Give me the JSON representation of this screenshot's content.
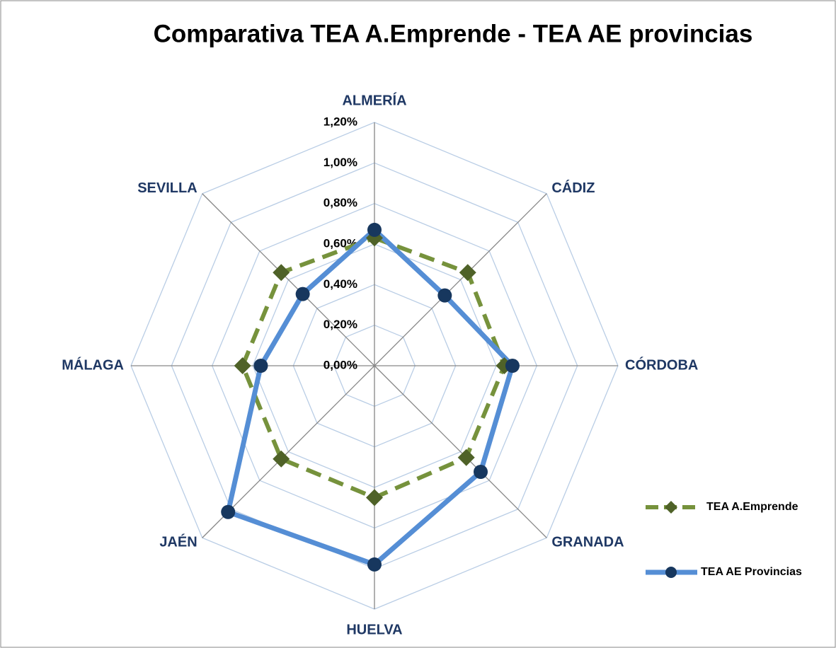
{
  "chart_data": {
    "type": "radar",
    "title": "Comparativa TEA A.Emprende - TEA AE provincias",
    "categories": [
      "ALMERÍA",
      "CÁDIZ",
      "CÓRDOBA",
      "GRANADA",
      "HUELVA",
      "JAÉN",
      "MÁLAGA",
      "SEVILLA"
    ],
    "series": [
      {
        "name": "TEA A.Emprende",
        "color": "#76923c",
        "marker_color": "#4f6228",
        "marker": "diamond",
        "dash": true,
        "values": [
          0.63,
          0.65,
          0.64,
          0.64,
          0.65,
          0.65,
          0.65,
          0.65
        ]
      },
      {
        "name": "TEA AE Provincias",
        "color": "#558ed5",
        "marker_color": "#17375e",
        "marker": "circle",
        "dash": false,
        "values": [
          0.67,
          0.49,
          0.68,
          0.74,
          0.98,
          1.02,
          0.56,
          0.5
        ]
      }
    ],
    "ylim": [
      0,
      1.2
    ],
    "yticks": [
      {
        "value": 0,
        "label": "0,00%"
      },
      {
        "value": 0.2,
        "label": "0,20%"
      },
      {
        "value": 0.4,
        "label": "0,40%"
      },
      {
        "value": 0.6,
        "label": "0,60%"
      },
      {
        "value": 0.8,
        "label": "0,80%"
      },
      {
        "value": 1.0,
        "label": "1,00%"
      },
      {
        "value": 1.2,
        "label": "1,20%"
      }
    ],
    "grid": true,
    "legend": "right"
  }
}
